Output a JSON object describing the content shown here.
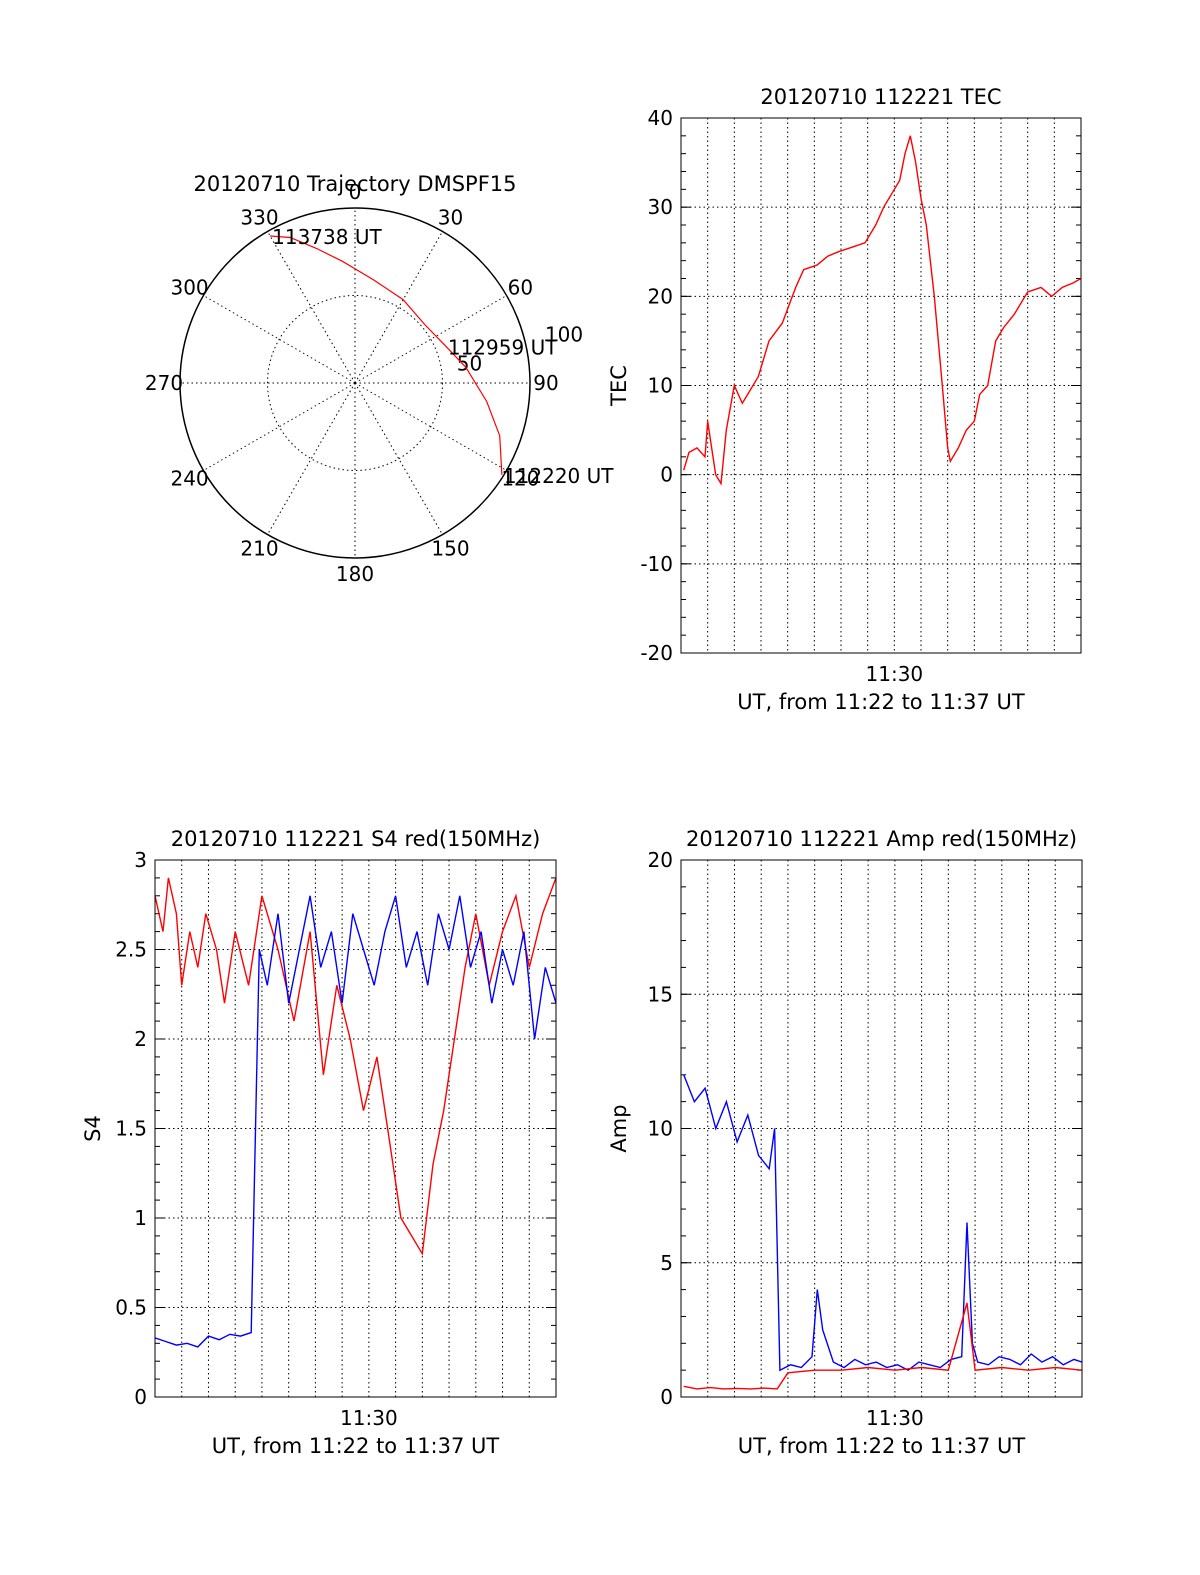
{
  "chart_data": [
    {
      "type": "polar",
      "title": "20120710 Trajectory DMSPF15",
      "azimuth_labels": [
        "0",
        "30",
        "60",
        "90",
        "120",
        "150",
        "180",
        "210",
        "240",
        "270",
        "300",
        "330"
      ],
      "elevation_ring_labels": [
        "50",
        "100"
      ],
      "series": [
        {
          "color": "#ff0000",
          "points": [
            {
              "az": 122,
              "el": 1
            },
            {
              "az": 110,
              "el": 12
            },
            {
              "az": 98,
              "el": 24
            },
            {
              "az": 82,
              "el": 36
            },
            {
              "az": 68,
              "el": 44
            },
            {
              "az": 50,
              "el": 48
            },
            {
              "az": 30,
              "el": 45
            },
            {
              "az": 10,
              "el": 40
            },
            {
              "az": -6,
              "el": 30
            },
            {
              "az": -16,
              "el": 20
            },
            {
              "az": -24,
              "el": 9
            },
            {
              "az": -30,
              "el": 3
            }
          ]
        }
      ],
      "annotations": [
        {
          "text": "113738 UT",
          "az": -30,
          "el": 3
        },
        {
          "text": "112959 UT",
          "az": 68,
          "el": 44
        },
        {
          "text": "112220 UT",
          "az": 122,
          "el": 1
        }
      ]
    },
    {
      "type": "line",
      "title": "20120710 112221 TEC",
      "ylabel": "TEC",
      "xlabel": "UT, from 11:22 to 11:37 UT",
      "xtick_labels": [
        {
          "min": 30,
          "label": "11:30"
        }
      ],
      "xlim_minutes": [
        22,
        37
      ],
      "ylim": [
        -20,
        40
      ],
      "yticks": [
        -20,
        -10,
        0,
        10,
        20,
        30,
        40
      ],
      "grid": true,
      "series": [
        {
          "color": "#ff0000",
          "x": [
            22.1,
            22.3,
            22.6,
            22.9,
            23.0,
            23.1,
            23.3,
            23.5,
            23.7,
            24.0,
            24.3,
            24.5,
            24.9,
            25.3,
            25.8,
            26.3,
            26.6,
            27.1,
            27.5,
            27.9,
            28.4,
            28.9,
            29.3,
            29.6,
            29.9,
            30.2,
            30.4,
            30.6,
            30.8,
            31.0,
            31.2,
            31.5,
            31.8,
            32.0,
            32.1,
            32.4,
            32.7,
            33.0,
            33.2,
            33.5,
            33.8,
            34.1,
            34.5,
            35.0,
            35.5,
            35.9,
            36.3,
            36.7,
            37.0
          ],
          "y": [
            0.5,
            2.5,
            3,
            2,
            6,
            4,
            0,
            -1,
            5,
            10,
            8,
            9,
            11,
            15,
            17,
            21,
            23,
            23.5,
            24.5,
            25,
            25.5,
            26,
            28,
            30,
            31.5,
            33,
            36,
            38,
            35,
            31,
            28,
            20,
            10,
            3,
            1.5,
            3,
            5,
            6,
            9,
            10,
            15,
            16.5,
            18,
            20.5,
            21,
            20,
            21,
            21.5,
            22
          ]
        }
      ]
    },
    {
      "type": "line",
      "title": "20120710 112221 S4 red(150MHz)",
      "ylabel": "S4",
      "xlabel": "UT, from 11:22 to 11:37 UT",
      "xtick_labels": [
        {
          "min": 30,
          "label": "11:30"
        }
      ],
      "xlim_minutes": [
        22,
        37
      ],
      "ylim": [
        0,
        3
      ],
      "yticks": [
        0,
        0.5,
        1,
        1.5,
        2,
        2.5,
        3
      ],
      "ytick_labels": [
        "0",
        "0.5",
        "1",
        "1.5",
        "2",
        "2.5",
        "3"
      ],
      "grid": true,
      "series": [
        {
          "color": "#ff0000",
          "x": [
            22.0,
            22.3,
            22.5,
            22.8,
            23.0,
            23.3,
            23.6,
            23.9,
            24.3,
            24.6,
            25.0,
            25.5,
            26.0,
            26.6,
            27.2,
            27.8,
            28.3,
            28.8,
            29.3,
            29.8,
            30.3,
            30.8,
            31.2,
            31.6,
            32.0,
            32.4,
            32.8,
            33.2,
            33.6,
            34.0,
            34.5,
            35.0,
            35.5,
            36.0,
            36.5,
            37.0
          ],
          "y": [
            2.8,
            2.6,
            2.9,
            2.7,
            2.3,
            2.6,
            2.4,
            2.7,
            2.5,
            2.2,
            2.6,
            2.3,
            2.8,
            2.5,
            2.1,
            2.6,
            1.8,
            2.3,
            2.0,
            1.6,
            1.9,
            1.4,
            1.0,
            0.9,
            0.8,
            1.3,
            1.6,
            2.0,
            2.4,
            2.7,
            2.3,
            2.6,
            2.8,
            2.4,
            2.7,
            2.9
          ]
        },
        {
          "color": "#0000ff",
          "x": [
            22.0,
            22.4,
            22.8,
            23.2,
            23.6,
            24.0,
            24.4,
            24.8,
            25.2,
            25.6,
            25.9,
            26.2,
            26.6,
            27.0,
            27.4,
            27.8,
            28.2,
            28.6,
            29.0,
            29.4,
            29.8,
            30.2,
            30.6,
            31.0,
            31.4,
            31.8,
            32.2,
            32.6,
            33.0,
            33.4,
            33.8,
            34.2,
            34.6,
            35.0,
            35.4,
            35.8,
            36.2,
            36.6,
            37.0
          ],
          "y": [
            0.33,
            0.31,
            0.29,
            0.3,
            0.28,
            0.34,
            0.32,
            0.35,
            0.34,
            0.36,
            2.5,
            2.3,
            2.7,
            2.2,
            2.5,
            2.8,
            2.4,
            2.6,
            2.2,
            2.7,
            2.5,
            2.3,
            2.6,
            2.8,
            2.4,
            2.6,
            2.3,
            2.7,
            2.5,
            2.8,
            2.4,
            2.6,
            2.2,
            2.5,
            2.3,
            2.6,
            2.0,
            2.4,
            2.2
          ]
        }
      ]
    },
    {
      "type": "line",
      "title": "20120710 112221 Amp red(150MHz)",
      "ylabel": "Amp",
      "xlabel": "UT, from 11:22 to 11:37 UT",
      "xtick_labels": [
        {
          "min": 30,
          "label": "11:30"
        }
      ],
      "xlim_minutes": [
        22,
        37
      ],
      "ylim": [
        0,
        20
      ],
      "yticks": [
        0,
        5,
        10,
        15,
        20
      ],
      "grid": true,
      "series": [
        {
          "color": "#0000ff",
          "x": [
            22.1,
            22.5,
            22.9,
            23.3,
            23.7,
            24.1,
            24.5,
            24.9,
            25.3,
            25.5,
            25.7,
            26.1,
            26.5,
            26.9,
            27.1,
            27.3,
            27.7,
            28.1,
            28.5,
            28.9,
            29.3,
            29.7,
            30.1,
            30.5,
            30.9,
            31.3,
            31.7,
            32.1,
            32.5,
            32.7,
            32.9,
            33.1,
            33.5,
            33.9,
            34.3,
            34.7,
            35.1,
            35.5,
            35.9,
            36.3,
            36.7,
            37.0
          ],
          "y": [
            12,
            11,
            11.5,
            10,
            11,
            9.5,
            10.5,
            9,
            8.5,
            10,
            1,
            1.2,
            1.1,
            1.5,
            4,
            2.5,
            1.3,
            1.1,
            1.4,
            1.2,
            1.3,
            1.1,
            1.2,
            1.0,
            1.3,
            1.2,
            1.1,
            1.4,
            1.5,
            6.5,
            2,
            1.3,
            1.2,
            1.5,
            1.4,
            1.2,
            1.6,
            1.3,
            1.5,
            1.2,
            1.4,
            1.3
          ]
        },
        {
          "color": "#ff0000",
          "x": [
            22.1,
            22.6,
            23.1,
            23.6,
            24.1,
            24.6,
            25.1,
            25.6,
            26.0,
            27.0,
            28.0,
            29.0,
            30.0,
            31.0,
            32.0,
            32.7,
            33.0,
            34.0,
            35.0,
            36.0,
            37.0
          ],
          "y": [
            0.4,
            0.3,
            0.35,
            0.3,
            0.32,
            0.3,
            0.33,
            0.3,
            0.9,
            1.0,
            1.0,
            1.1,
            1.0,
            1.1,
            1.0,
            3.5,
            1.0,
            1.1,
            1.0,
            1.1,
            1.0
          ]
        }
      ]
    }
  ]
}
